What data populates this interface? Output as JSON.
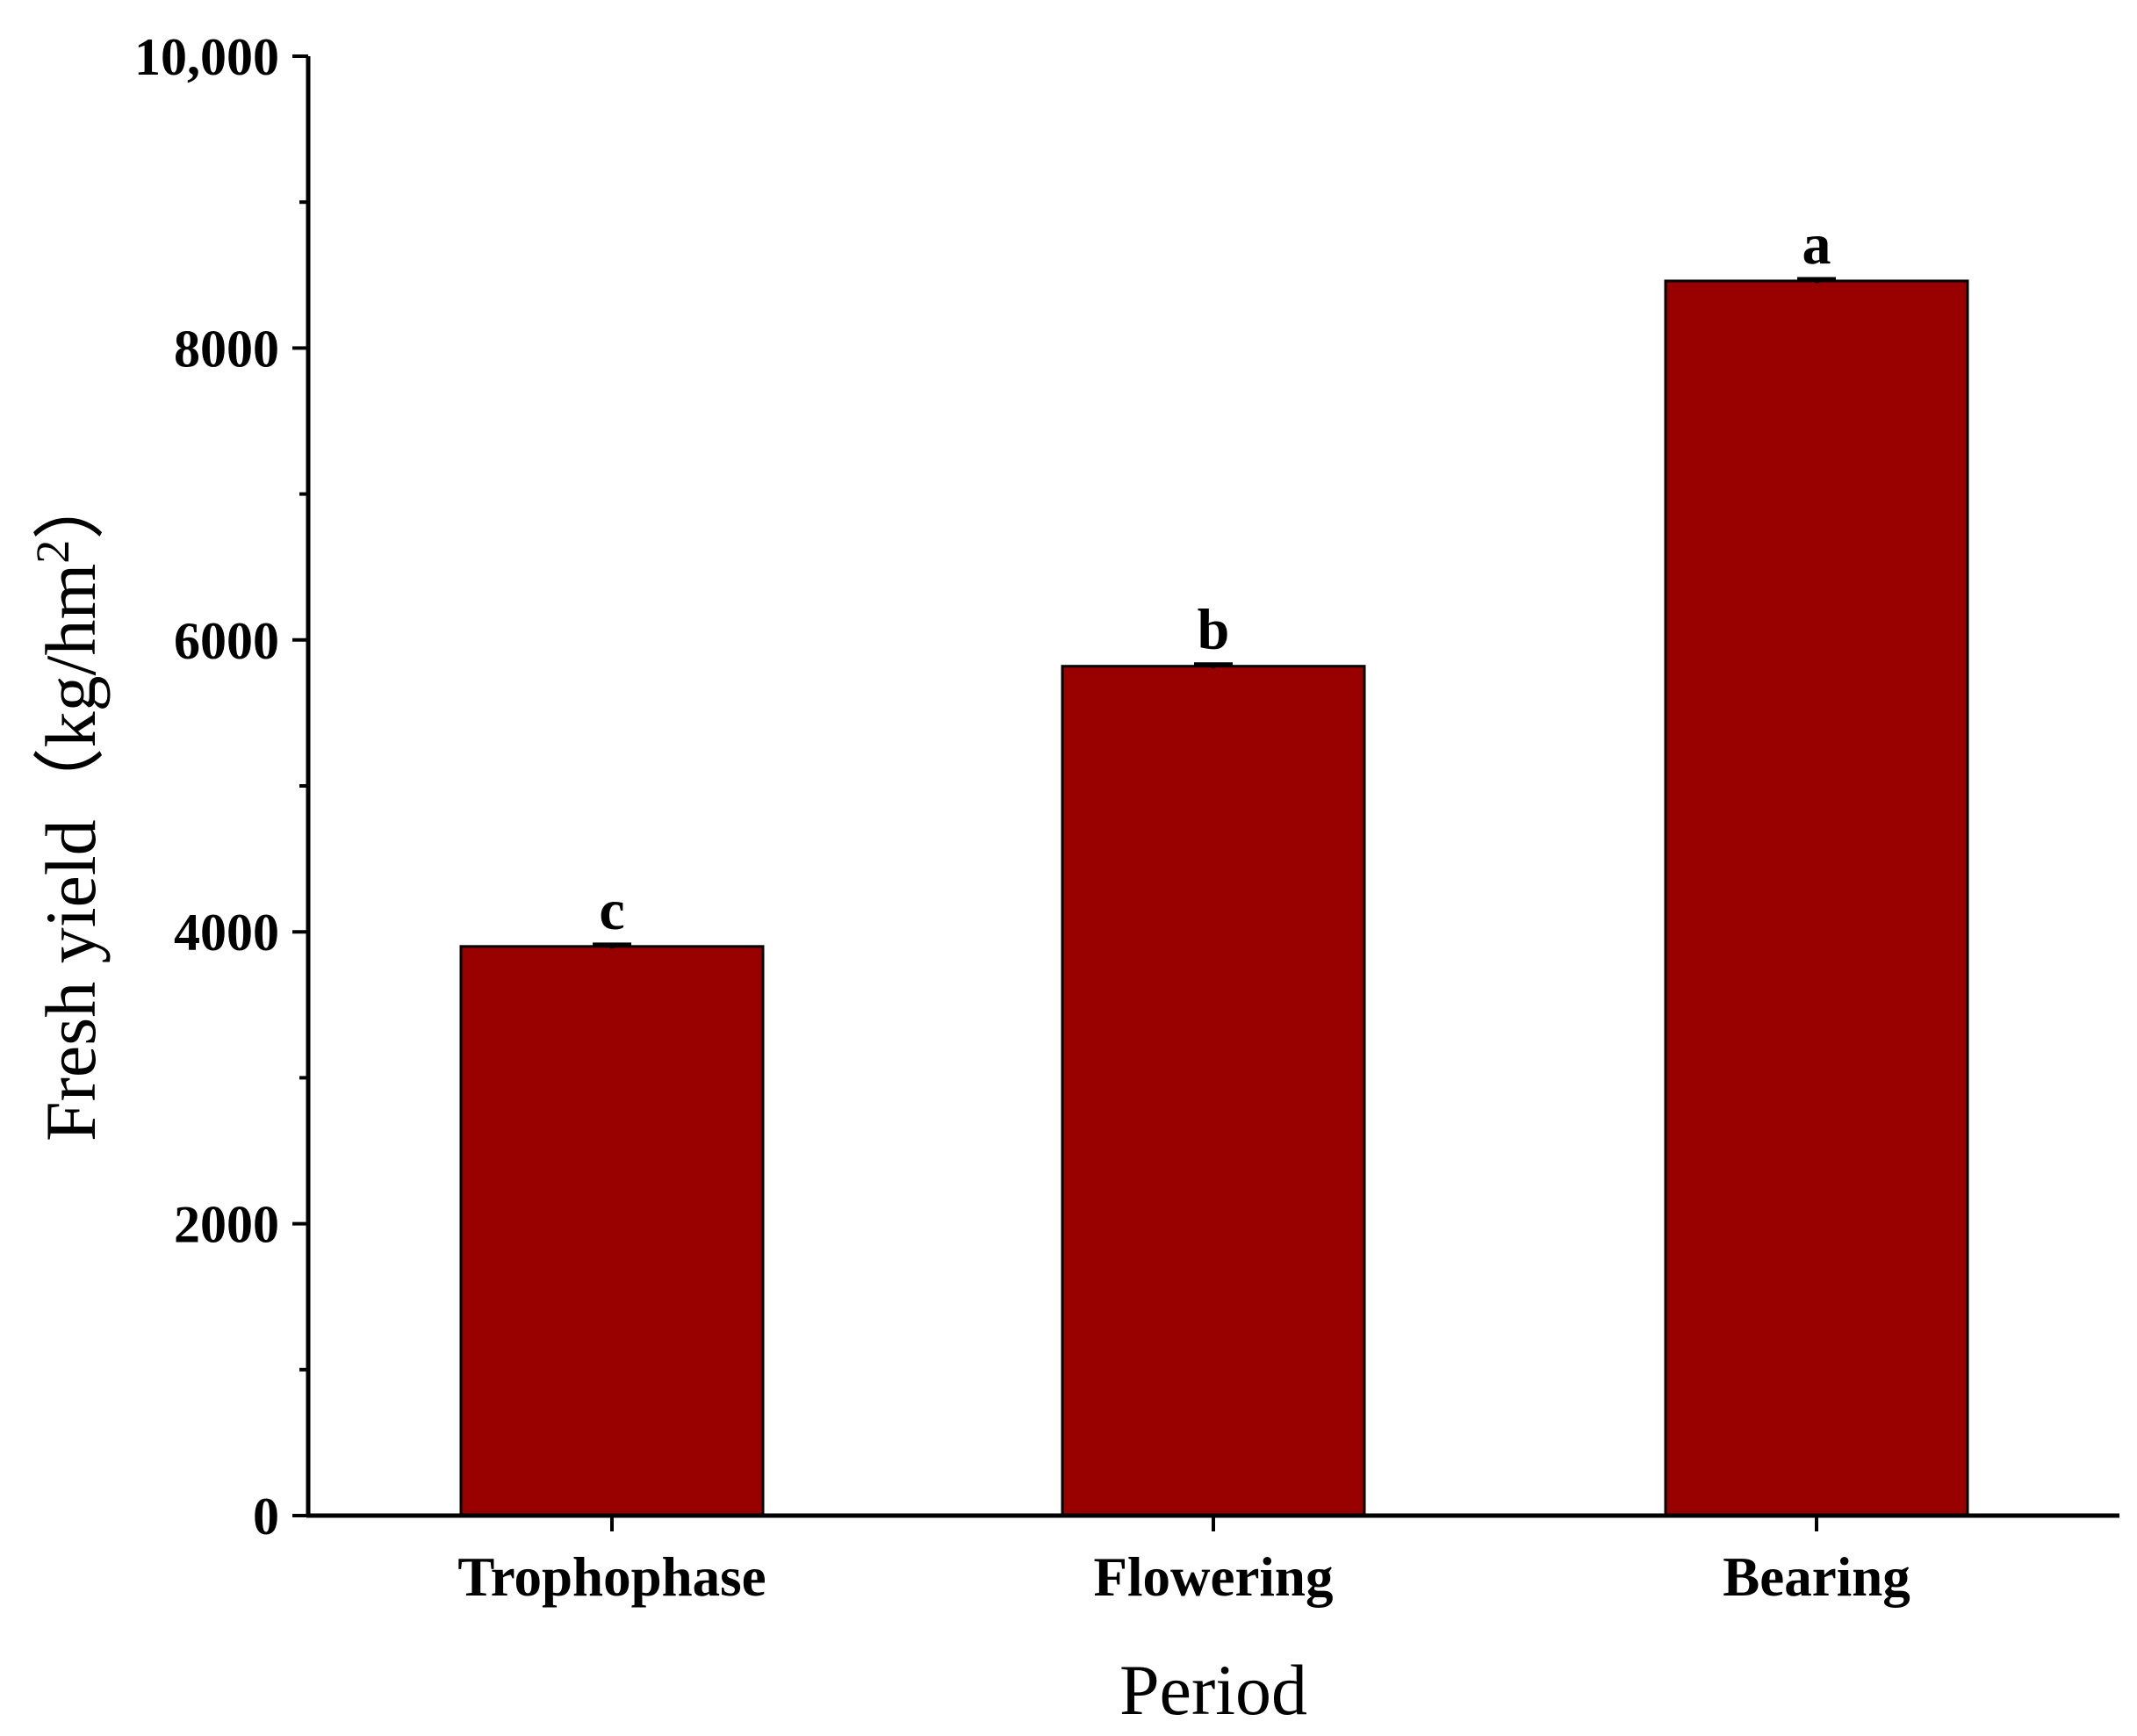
{
  "chart_data": {
    "type": "bar",
    "categories": [
      "Trophophase",
      "Flowering",
      "Bearing"
    ],
    "values": [
      3900,
      5820,
      8460
    ],
    "errors": [
      15,
      15,
      15
    ],
    "significance_labels": [
      "c",
      "b",
      "a"
    ],
    "title": "",
    "xlabel": "Period",
    "ylabel": "Fresh yield（kg/hm",
    "ylabel_superscript": "2",
    "ylabel_close": "）",
    "ylim": [
      0,
      10000
    ],
    "yticks": [
      0,
      2000,
      4000,
      6000,
      8000,
      10000
    ],
    "ytick_labels": [
      "0",
      "2000",
      "4000",
      "6000",
      "8000",
      "10,000"
    ],
    "bar_color": "#990000",
    "grid": false,
    "legend": "none"
  }
}
